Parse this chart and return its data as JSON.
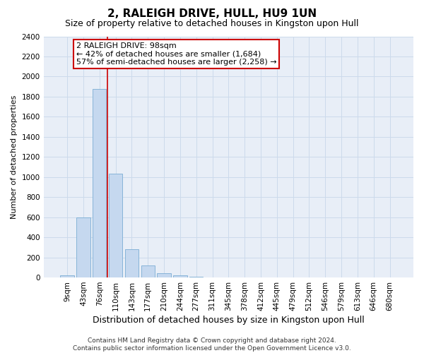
{
  "title": "2, RALEIGH DRIVE, HULL, HU9 1UN",
  "subtitle": "Size of property relative to detached houses in Kingston upon Hull",
  "xlabel": "Distribution of detached houses by size in Kingston upon Hull",
  "ylabel": "Number of detached properties",
  "bar_labels": [
    "9sqm",
    "43sqm",
    "76sqm",
    "110sqm",
    "143sqm",
    "177sqm",
    "210sqm",
    "244sqm",
    "277sqm",
    "311sqm",
    "345sqm",
    "378sqm",
    "412sqm",
    "445sqm",
    "479sqm",
    "512sqm",
    "546sqm",
    "579sqm",
    "613sqm",
    "646sqm",
    "680sqm"
  ],
  "bar_values": [
    20,
    600,
    1880,
    1030,
    280,
    120,
    45,
    20,
    10,
    0,
    0,
    0,
    0,
    0,
    0,
    0,
    0,
    0,
    0,
    0,
    0
  ],
  "bar_color": "#c5d8ef",
  "bar_edge_color": "#7aadd4",
  "grid_color": "#ccdaeb",
  "background_color": "#ffffff",
  "axes_facecolor": "#e8eef7",
  "annotation_text": "2 RALEIGH DRIVE: 98sqm\n← 42% of detached houses are smaller (1,684)\n57% of semi-detached houses are larger (2,258) →",
  "annotation_box_facecolor": "#ffffff",
  "annotation_box_edgecolor": "#cc0000",
  "vline_color": "#cc0000",
  "vline_x_index": 2.48,
  "ylim": [
    0,
    2400
  ],
  "yticks": [
    0,
    200,
    400,
    600,
    800,
    1000,
    1200,
    1400,
    1600,
    1800,
    2000,
    2200,
    2400
  ],
  "footnote": "Contains HM Land Registry data © Crown copyright and database right 2024.\nContains public sector information licensed under the Open Government Licence v3.0.",
  "title_fontsize": 11,
  "subtitle_fontsize": 9,
  "xlabel_fontsize": 9,
  "ylabel_fontsize": 8,
  "tick_fontsize": 7.5,
  "annotation_fontsize": 8,
  "footnote_fontsize": 6.5
}
